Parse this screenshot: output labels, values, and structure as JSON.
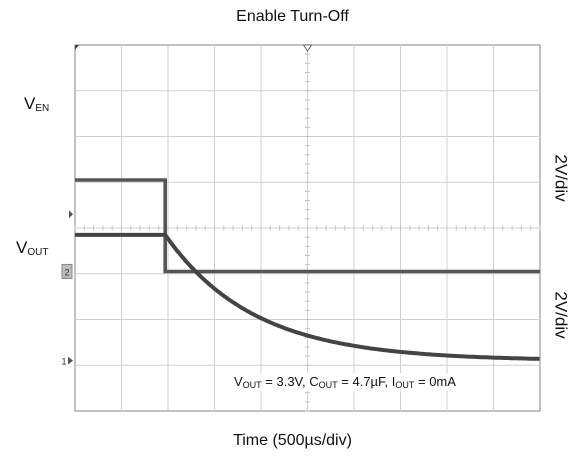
{
  "chart_data": {
    "type": "line",
    "title": "Enable Turn-Off",
    "xlabel": "Time (500µs/div)",
    "x_divisions": 10,
    "y_divisions": 8,
    "grid": true,
    "channels": [
      {
        "label_main": "V",
        "label_sub": "EN",
        "scale_label": "2V/div",
        "marker": "2",
        "points_div": [
          [
            0,
            5.05
          ],
          [
            1.94,
            5.05
          ],
          [
            1.94,
            3.05
          ],
          [
            10,
            3.05
          ]
        ],
        "color": "#555555"
      },
      {
        "label_main": "V",
        "label_sub": "OUT",
        "scale_label": "2V/div",
        "marker": "1",
        "ground_div": 1.1,
        "step_div": 1.94,
        "initial_div": 2.75,
        "final_div": 0.0,
        "tau_div": 1.9,
        "color": "#444444"
      }
    ]
  },
  "annotation": {
    "parts": [
      {
        "t": "V"
      },
      {
        "sub": "OUT"
      },
      {
        "t": " = 3.3V, C"
      },
      {
        "sub": "OUT"
      },
      {
        "t": " = 4.7µF, I"
      },
      {
        "sub": "OUT"
      },
      {
        "t": " = 0mA"
      }
    ]
  }
}
